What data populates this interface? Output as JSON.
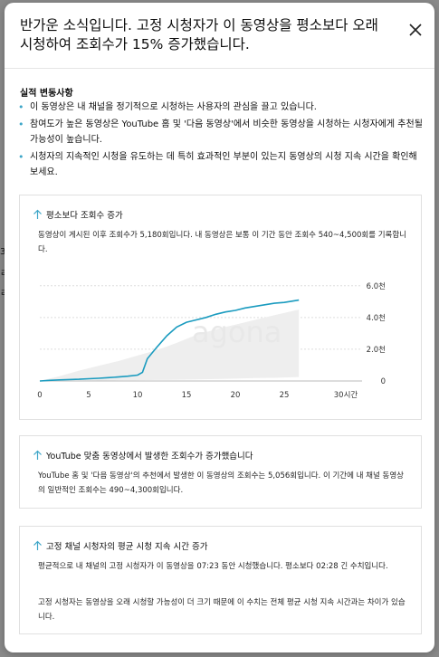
{
  "left_fragments": [
    "3",
    "ㄹ",
    "ㄹ"
  ],
  "dialog": {
    "title": "반가운 소식입니다. 고정 시청자가 이 동영상을 평소보다 오래 시청하여 조회수가 15% 증가했습니다.",
    "close_icon": "close-icon"
  },
  "summary": {
    "heading": "실적 변동사항",
    "bullets": [
      "이 동영상은 내 채널을 정기적으로 시청하는 사용자의 관심을 끌고 있습니다.",
      "참여도가 높은 동영상은 YouTube 홈 및 '다음 동영상'에서 비슷한 동영상을 시청하는 시청자에게 추천될 가능성이 높습니다.",
      "시청자의 지속적인 시청을 유도하는 데 특히 효과적인 부분이 있는지 동영상의 시청 지속 시간을 확인해 보세요."
    ]
  },
  "card1": {
    "title": "평소보다 조회수 증가",
    "text": "동영상이 게시된 이후 조회수가 5,180회입니다. 내 동영상은 보통 이 기간 동안 조회수 540~4,500회를 기록합니다."
  },
  "card2": {
    "title": "YouTube 맞춤 동영상에서 발생한 조회수가 증가했습니다",
    "text": "YouTube 홈 및 '다음 동영상'의 추천에서 발생한 이 동영상의 조회수는 5,056회입니다. 이 기간에 내 채널 동영상의 일반적인 조회수는 490~4,300회입니다."
  },
  "card3": {
    "title": "고정 채널 시청자의 평균 시청 지속 시간 증가",
    "text1": "평균적으로 내 채널의 고정 시청자가 이 동영상을 07:23 동안 시청했습니다. 평소보다 02:28 긴 수치입니다.",
    "text2": "고정 시청자는 동영상을 오래 시청할 가능성이 더 크기 때문에 이 수치는 전체 평균 시청 지속 시간과는 차이가 있습니다."
  },
  "colors": {
    "accent": "#1a9bbf",
    "band": "#eeeeee",
    "arrow": "#3ea6c8"
  },
  "chart_data": {
    "type": "line",
    "xlabel": "",
    "ylabel": "",
    "x_ticks": [
      0,
      5,
      10,
      15,
      20,
      25
    ],
    "x_tick_labels": [
      "0",
      "5",
      "10",
      "15",
      "20",
      "25"
    ],
    "x_end_label": "30시간",
    "xlim": [
      0,
      30
    ],
    "y_ticks": [
      0,
      2000,
      4000,
      6000
    ],
    "y_tick_labels": [
      "0",
      "2.0천",
      "4.0천",
      "6.0천"
    ],
    "ylim": [
      0,
      6500
    ],
    "grid": "horizontal dashed",
    "series": [
      {
        "x": [
          0,
          1,
          2,
          3,
          4,
          5,
          6,
          7,
          8,
          9,
          10,
          10.5,
          11,
          12,
          13,
          14,
          15,
          16,
          17,
          18,
          19,
          20,
          21,
          22,
          23,
          24,
          25,
          26,
          26.5
        ],
        "y": [
          0,
          40,
          70,
          90,
          110,
          140,
          170,
          210,
          250,
          300,
          370,
          550,
          1400,
          2150,
          2850,
          3400,
          3700,
          3850,
          4000,
          4200,
          4350,
          4450,
          4600,
          4700,
          4800,
          4900,
          4950,
          5050,
          5100
        ]
      }
    ],
    "typical_range": {
      "x": [
        0,
        2,
        4,
        6,
        8,
        10,
        12,
        14,
        16,
        18,
        20,
        22,
        24,
        26.5
      ],
      "lower": [
        0,
        10,
        20,
        30,
        40,
        50,
        60,
        80,
        100,
        120,
        150,
        180,
        200,
        250
      ],
      "upper": [
        0,
        300,
        650,
        950,
        1250,
        1600,
        1950,
        2400,
        2900,
        3250,
        3550,
        3850,
        4150,
        4500
      ]
    }
  }
}
